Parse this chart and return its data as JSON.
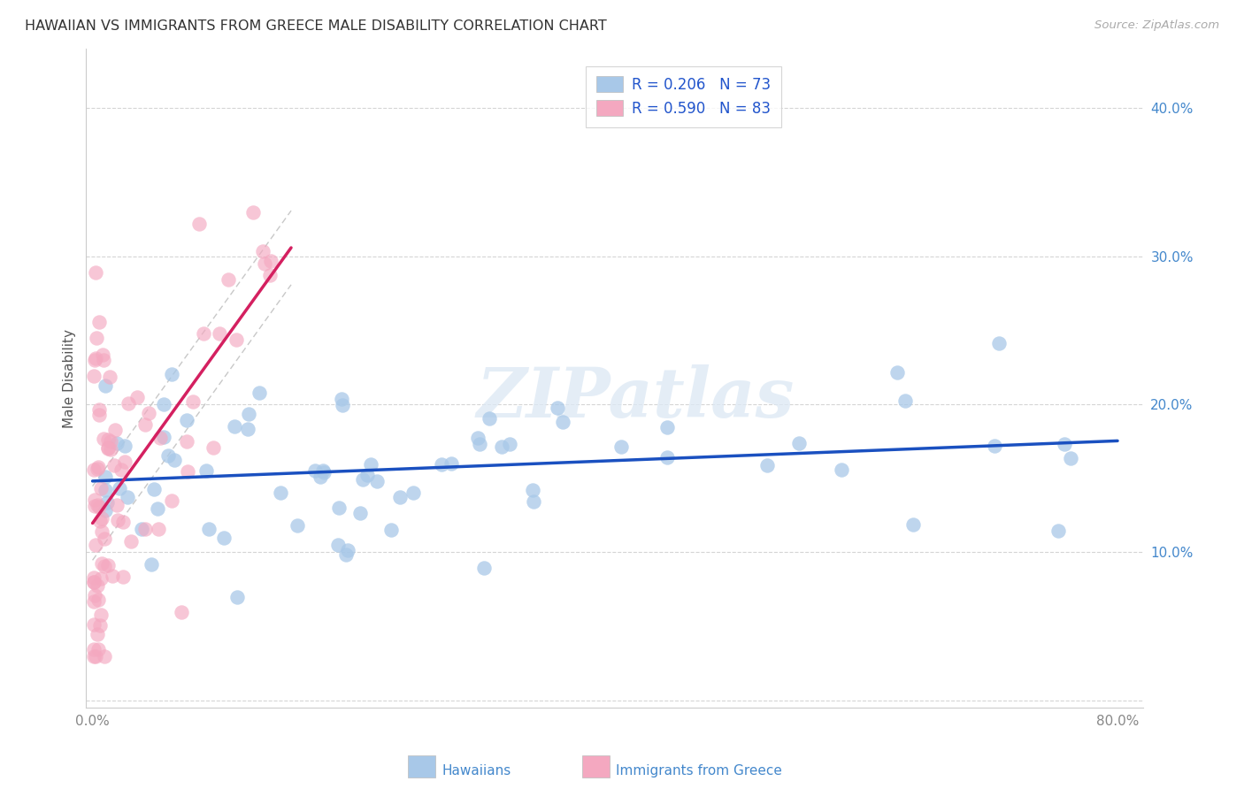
{
  "title": "HAWAIIAN VS IMMIGRANTS FROM GREECE MALE DISABILITY CORRELATION CHART",
  "source": "Source: ZipAtlas.com",
  "ylabel": "Male Disability",
  "xlim": [
    -0.005,
    0.82
  ],
  "ylim": [
    -0.005,
    0.44
  ],
  "xtick_positions": [
    0.0,
    0.1,
    0.2,
    0.3,
    0.4,
    0.5,
    0.6,
    0.7,
    0.8
  ],
  "xticklabels": [
    "0.0%",
    "",
    "",
    "",
    "",
    "",
    "",
    "",
    "80.0%"
  ],
  "ytick_positions": [
    0.0,
    0.1,
    0.2,
    0.3,
    0.4
  ],
  "yticklabels": [
    "",
    "10.0%",
    "20.0%",
    "30.0%",
    "40.0%"
  ],
  "legend_r1": "R = 0.206",
  "legend_n1": "N = 73",
  "legend_r2": "R = 0.590",
  "legend_n2": "N = 83",
  "hawaiian_color": "#a8c8e8",
  "greek_color": "#f4a8c0",
  "trendline_hawaiian_color": "#1a50c0",
  "trendline_greek_color": "#d42060",
  "trendline_conf_color": "#c8c8c8",
  "watermark": "ZIPatlas",
  "background_color": "#ffffff",
  "legend_text_color": "#2255cc",
  "ytick_color": "#4488cc",
  "bottom_label_color": "#4488cc"
}
